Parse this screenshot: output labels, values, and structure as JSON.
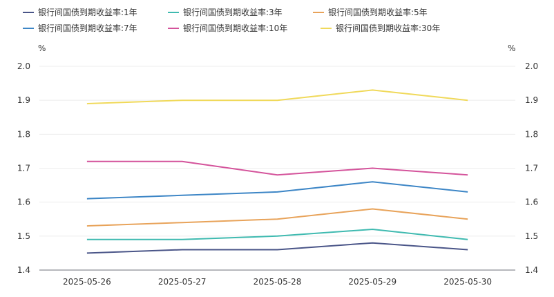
{
  "chart_data": {
    "type": "line",
    "categories": [
      "2025-05-26",
      "2025-05-27",
      "2025-05-28",
      "2025-05-29",
      "2025-05-30"
    ],
    "ylim": [
      1.4,
      2.0
    ],
    "yticks": [
      "1.4",
      "1.5",
      "1.6",
      "1.7",
      "1.8",
      "1.9",
      "2.0"
    ],
    "y_unit_left": "%",
    "y_unit_right": "%",
    "legend_position": "top-left",
    "grid": true,
    "series": [
      {
        "name": "银行间国债到期收益率:1年",
        "color": "#4a5588",
        "values": [
          1.45,
          1.46,
          1.46,
          1.48,
          1.46
        ]
      },
      {
        "name": "银行间国债到期收益率:3年",
        "color": "#3fbab0",
        "values": [
          1.49,
          1.49,
          1.5,
          1.52,
          1.49
        ]
      },
      {
        "name": "银行间国债到期收益率:5年",
        "color": "#e8a35a",
        "values": [
          1.53,
          1.54,
          1.55,
          1.58,
          1.55
        ]
      },
      {
        "name": "银行间国债到期收益率:7年",
        "color": "#3d86c6",
        "values": [
          1.61,
          1.62,
          1.63,
          1.66,
          1.63
        ]
      },
      {
        "name": "银行间国债到期收益率:10年",
        "color": "#d4539b",
        "values": [
          1.72,
          1.72,
          1.68,
          1.7,
          1.68
        ]
      },
      {
        "name": "银行间国债到期收益率:30年",
        "color": "#f0d95a",
        "values": [
          1.89,
          1.9,
          1.9,
          1.93,
          1.9
        ]
      }
    ]
  }
}
